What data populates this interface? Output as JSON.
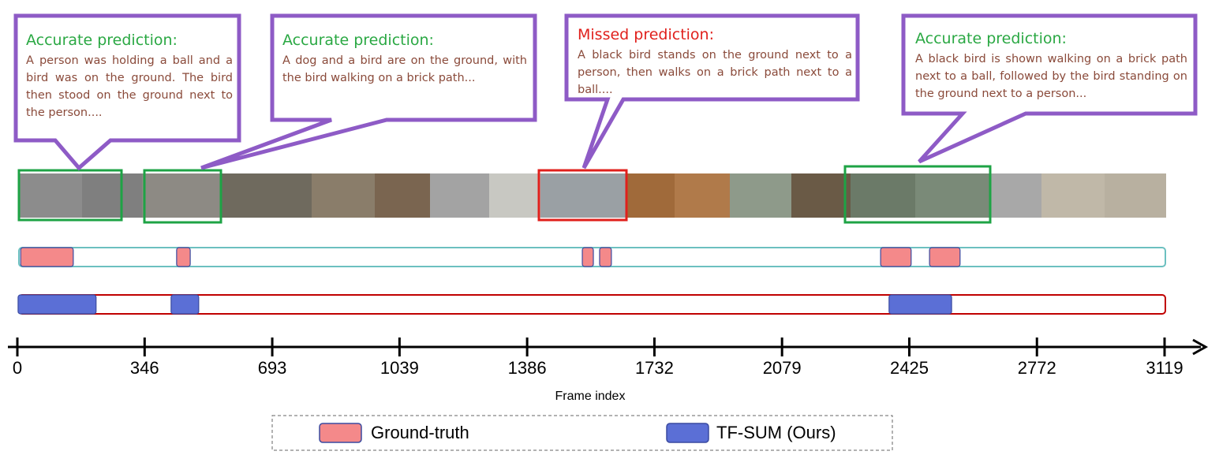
{
  "chart_data": {
    "type": "timeline",
    "x_label": "Frame index",
    "xlim": [
      0,
      3119
    ],
    "xticks": [
      0,
      346,
      693,
      1039,
      1386,
      1732,
      2079,
      2425,
      2772,
      3119
    ],
    "series": [
      {
        "name": "Ground-truth",
        "color": "#f4898a",
        "track_color": "#6cc0c0",
        "segments": [
          [
            9,
            152
          ],
          [
            433,
            470
          ],
          [
            1536,
            1566
          ],
          [
            1583,
            1615
          ],
          [
            2347,
            2430
          ],
          [
            2480,
            2563
          ]
        ]
      },
      {
        "name": "TF-SUM (Ours)",
        "color": "#5b6fd6",
        "track_color": "#c00000",
        "segments": [
          [
            2,
            214
          ],
          [
            418,
            493
          ],
          [
            2370,
            2540
          ]
        ]
      }
    ],
    "annotations": [
      {
        "title": "Accurate prediction:",
        "color": "#2aa843",
        "text": "A person was holding a ball and a bird was on the ground. The bird then stood on the ground next to the person...."
      },
      {
        "title": "Accurate prediction:",
        "color": "#2aa843",
        "text": "A dog and a bird are on the ground, with the bird walking on a brick path..."
      },
      {
        "title": "Missed prediction:",
        "color": "#e0201c",
        "text": "A black bird stands on the ground next to a person, then walks on a brick path next to a ball...."
      },
      {
        "title": "Accurate prediction:",
        "color": "#2aa843",
        "text": "A black bird is shown walking on a brick path next to a ball, followed by the bird standing on the ground next to a person..."
      }
    ]
  }
}
